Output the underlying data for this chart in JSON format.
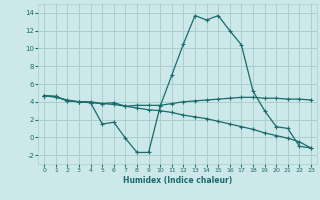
{
  "xlabel": "Humidex (Indice chaleur)",
  "bg_color": "#cce8e8",
  "grid_color": "#aacfcf",
  "line_color": "#1a6b6b",
  "xlim": [
    -0.5,
    23.5
  ],
  "ylim": [
    -3.0,
    15.0
  ],
  "xticks": [
    0,
    1,
    2,
    3,
    4,
    5,
    6,
    7,
    8,
    9,
    10,
    11,
    12,
    13,
    14,
    15,
    16,
    17,
    18,
    19,
    20,
    21,
    22,
    23
  ],
  "yticks": [
    -2,
    0,
    2,
    4,
    6,
    8,
    10,
    12,
    14
  ],
  "line1_x": [
    0,
    1,
    2,
    3,
    4,
    5,
    6,
    7,
    8,
    9,
    10,
    11,
    12,
    13,
    14,
    15,
    16,
    17,
    18,
    19,
    20,
    21,
    22,
    23
  ],
  "line1_y": [
    4.7,
    4.6,
    4.1,
    4.0,
    3.9,
    3.8,
    3.9,
    3.5,
    3.6,
    3.6,
    3.6,
    3.8,
    4.0,
    4.1,
    4.2,
    4.3,
    4.4,
    4.5,
    4.5,
    4.4,
    4.4,
    4.3,
    4.3,
    4.2
  ],
  "line2_x": [
    0,
    1,
    2,
    3,
    4,
    5,
    6,
    7,
    8,
    9,
    10,
    11,
    12,
    13,
    14,
    15,
    16,
    17,
    18,
    19,
    20,
    21,
    22,
    23
  ],
  "line2_y": [
    4.7,
    4.6,
    4.1,
    4.0,
    3.9,
    1.5,
    1.7,
    -0.1,
    -1.7,
    -1.7,
    3.5,
    7.0,
    10.5,
    13.7,
    13.2,
    13.7,
    12.0,
    10.4,
    5.2,
    3.0,
    1.2,
    1.0,
    -1.0,
    -1.2
  ],
  "line3_x": [
    0,
    1,
    2,
    3,
    4,
    5,
    6,
    7,
    8,
    9,
    10,
    11,
    12,
    13,
    14,
    15,
    16,
    17,
    18,
    19,
    20,
    21,
    22,
    23
  ],
  "line3_y": [
    4.7,
    4.5,
    4.2,
    4.0,
    4.0,
    3.8,
    3.7,
    3.5,
    3.3,
    3.1,
    3.0,
    2.8,
    2.5,
    2.3,
    2.1,
    1.8,
    1.5,
    1.2,
    0.9,
    0.5,
    0.2,
    -0.1,
    -0.5,
    -1.2
  ]
}
